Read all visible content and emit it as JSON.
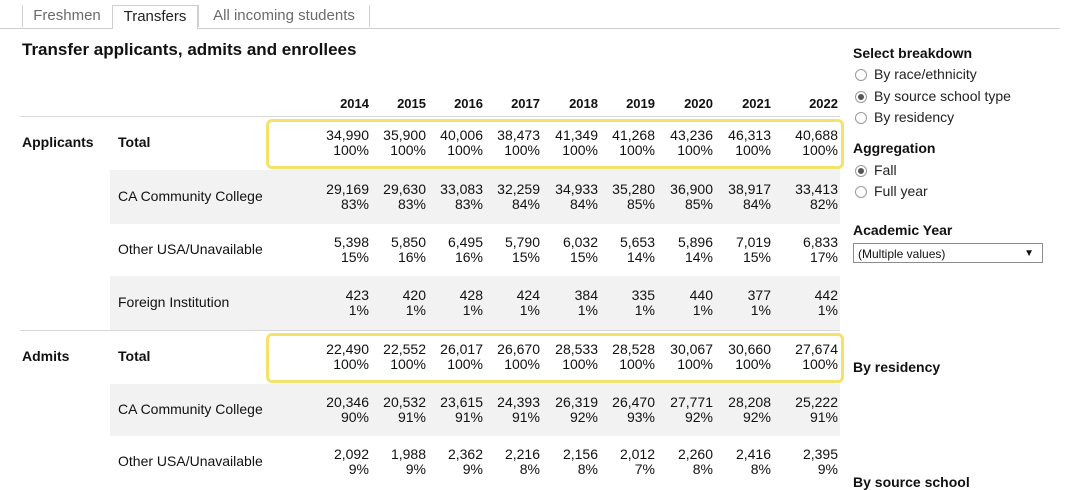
{
  "tabs": [
    {
      "label": "Freshmen"
    },
    {
      "label": "Transfers"
    },
    {
      "label": "All incoming students"
    }
  ],
  "title": "Transfer applicants, admits and enrollees",
  "years": [
    "2014",
    "2015",
    "2016",
    "2017",
    "2018",
    "2019",
    "2020",
    "2021",
    "2022"
  ],
  "groups": {
    "applicants": {
      "label": "Applicants",
      "rows": [
        {
          "label": "Total",
          "values": [
            "34,990",
            "35,900",
            "40,006",
            "38,473",
            "41,349",
            "41,268",
            "43,236",
            "46,313",
            "40,688"
          ],
          "pcts": [
            "100%",
            "100%",
            "100%",
            "100%",
            "100%",
            "100%",
            "100%",
            "100%",
            "100%"
          ]
        },
        {
          "label": "CA Community College",
          "values": [
            "29,169",
            "29,630",
            "33,083",
            "32,259",
            "34,933",
            "35,280",
            "36,900",
            "38,917",
            "33,413"
          ],
          "pcts": [
            "83%",
            "83%",
            "83%",
            "84%",
            "84%",
            "85%",
            "85%",
            "84%",
            "82%"
          ]
        },
        {
          "label": "Other USA/Unavailable",
          "values": [
            "5,398",
            "5,850",
            "6,495",
            "5,790",
            "6,032",
            "5,653",
            "5,896",
            "7,019",
            "6,833"
          ],
          "pcts": [
            "15%",
            "16%",
            "16%",
            "15%",
            "15%",
            "14%",
            "14%",
            "15%",
            "17%"
          ]
        },
        {
          "label": "Foreign Institution",
          "values": [
            "423",
            "420",
            "428",
            "424",
            "384",
            "335",
            "440",
            "377",
            "442"
          ],
          "pcts": [
            "1%",
            "1%",
            "1%",
            "1%",
            "1%",
            "1%",
            "1%",
            "1%",
            "1%"
          ]
        }
      ]
    },
    "admits": {
      "label": "Admits",
      "rows": [
        {
          "label": "Total",
          "values": [
            "22,490",
            "22,552",
            "26,017",
            "26,670",
            "28,533",
            "28,528",
            "30,067",
            "30,660",
            "27,674"
          ],
          "pcts": [
            "100%",
            "100%",
            "100%",
            "100%",
            "100%",
            "100%",
            "100%",
            "100%",
            "100%"
          ]
        },
        {
          "label": "CA Community College",
          "values": [
            "20,346",
            "20,532",
            "23,615",
            "24,393",
            "26,319",
            "26,470",
            "27,771",
            "28,208",
            "25,222"
          ],
          "pcts": [
            "90%",
            "91%",
            "91%",
            "91%",
            "92%",
            "93%",
            "92%",
            "92%",
            "91%"
          ]
        },
        {
          "label": "Other USA/Unavailable",
          "values": [
            "2,092",
            "1,988",
            "2,362",
            "2,216",
            "2,156",
            "2,012",
            "2,260",
            "2,416",
            "2,395"
          ],
          "pcts": [
            "9%",
            "9%",
            "9%",
            "8%",
            "8%",
            "7%",
            "8%",
            "8%",
            "9%"
          ]
        }
      ]
    }
  },
  "panel": {
    "breakdown_title": "Select breakdown",
    "breakdown_options": [
      "By race/ethnicity",
      "By source school type",
      "By residency"
    ],
    "breakdown_selected": "By source school type",
    "aggregation_title": "Aggregation",
    "aggregation_options": [
      "Fall",
      "Full year"
    ],
    "aggregation_selected": "Fall",
    "year_title": "Academic Year",
    "year_value": "(Multiple values)",
    "legend_residency": "By residency",
    "legend_source": "By source school"
  },
  "colors": {
    "highlight": "#f5e26a",
    "band": "#f2f2f2"
  }
}
